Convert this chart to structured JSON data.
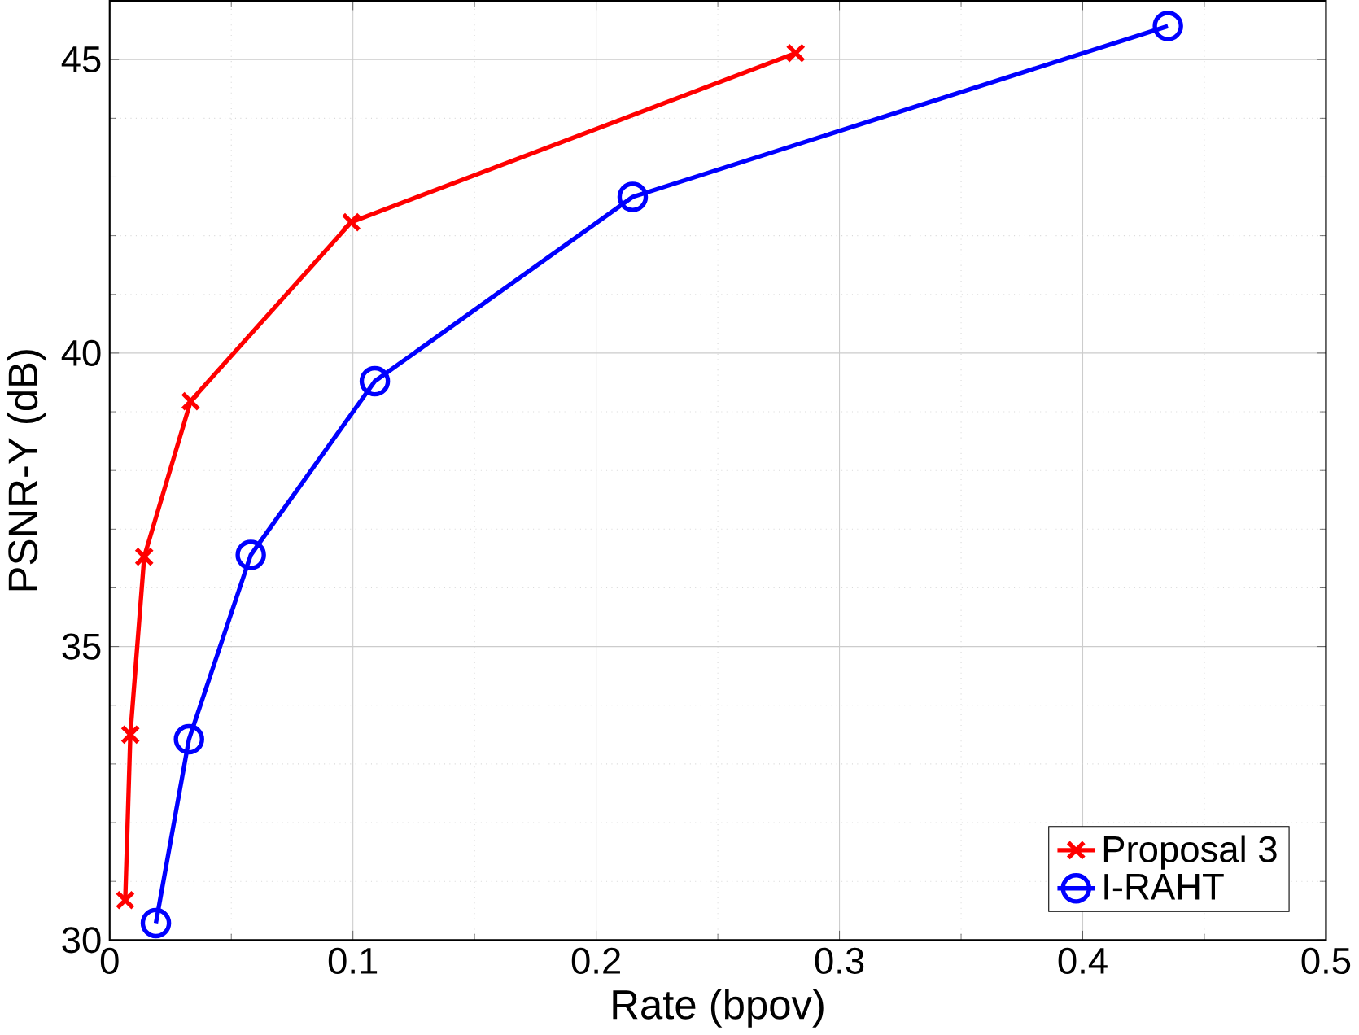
{
  "chart_data": {
    "type": "line",
    "xlabel": "Rate (bpov)",
    "ylabel": "PSNR-Y (dB)",
    "xlim": [
      0,
      0.5
    ],
    "ylim": [
      30,
      46
    ],
    "xticks": [
      0,
      0.1,
      0.2,
      0.3,
      0.4,
      0.5
    ],
    "yticks": [
      30,
      35,
      40,
      45
    ],
    "grid": true,
    "legend": "bottom right",
    "line_style": "solid",
    "series": [
      {
        "name": "Proposal 3",
        "color": "#ff0000",
        "marker": "cross",
        "x": [
          0.0064,
          0.0085,
          0.0142,
          0.0333,
          0.0993,
          0.282
        ],
        "values": [
          30.68,
          33.5,
          36.53,
          39.18,
          42.23,
          45.11
        ]
      },
      {
        "name": "I-RAHT",
        "color": "#0000ff",
        "marker": "circle",
        "x": [
          0.019,
          0.0326,
          0.058,
          0.109,
          0.215,
          0.435
        ],
        "values": [
          30.29,
          33.42,
          36.56,
          39.52,
          42.66,
          45.57
        ]
      }
    ]
  }
}
